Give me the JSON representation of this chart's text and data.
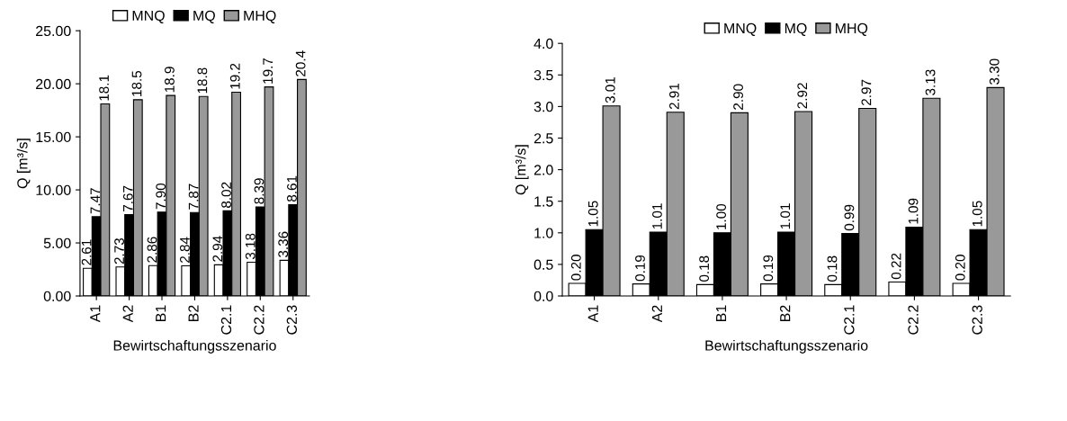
{
  "chart_data": [
    {
      "type": "bar",
      "xlabel": "Bewirtschaftungsszenario",
      "ylabel": "Q [m³/s]",
      "categories": [
        "A1",
        "A2",
        "B1",
        "B2",
        "C2.1",
        "C2.2",
        "C2.3"
      ],
      "series": [
        {
          "name": "MNQ",
          "color": "#ffffff",
          "values": [
            2.61,
            2.73,
            2.86,
            2.84,
            2.94,
            3.18,
            3.36
          ],
          "value_labels": [
            "2.61",
            "2.73",
            "2.86",
            "2.84",
            "2.94",
            "3.18",
            "3.36"
          ]
        },
        {
          "name": "MQ",
          "color": "#000000",
          "values": [
            7.47,
            7.67,
            7.9,
            7.87,
            8.02,
            8.39,
            8.61
          ],
          "value_labels": [
            "7.47",
            "7.67",
            "7.90",
            "7.87",
            "8.02",
            "8.39",
            "8.61"
          ]
        },
        {
          "name": "MHQ",
          "color": "#999999",
          "values": [
            18.1,
            18.5,
            18.9,
            18.8,
            19.2,
            19.7,
            20.4
          ],
          "value_labels": [
            "18.1",
            "18.5",
            "18.9",
            "18.8",
            "19.2",
            "19.7",
            "20.4"
          ]
        }
      ],
      "ylim": [
        0,
        25
      ],
      "yticks": [
        {
          "value": 0,
          "label": "0.00"
        },
        {
          "value": 5,
          "label": "5.00"
        },
        {
          "value": 10,
          "label": "10.00"
        },
        {
          "value": 15,
          "label": "15.00"
        },
        {
          "value": 20,
          "label": "20.00"
        },
        {
          "value": 25,
          "label": "25.00"
        }
      ],
      "legend": "top",
      "grid": false
    },
    {
      "type": "bar",
      "xlabel": "Bewirtschaftungsszenario",
      "ylabel": "Q [m³/s]",
      "categories": [
        "A1",
        "A2",
        "B1",
        "B2",
        "C2.1",
        "C2.2",
        "C2.3"
      ],
      "series": [
        {
          "name": "MNQ",
          "color": "#ffffff",
          "values": [
            0.2,
            0.19,
            0.18,
            0.19,
            0.18,
            0.22,
            0.2
          ],
          "value_labels": [
            "0.20",
            "0.19",
            "0.18",
            "0.19",
            "0.18",
            "0.22",
            "0.20"
          ]
        },
        {
          "name": "MQ",
          "color": "#000000",
          "values": [
            1.05,
            1.01,
            1.0,
            1.01,
            0.99,
            1.09,
            1.05
          ],
          "value_labels": [
            "1.05",
            "1.01",
            "1.00",
            "1.01",
            "0.99",
            "1.09",
            "1.05"
          ]
        },
        {
          "name": "MHQ",
          "color": "#999999",
          "values": [
            3.01,
            2.91,
            2.9,
            2.92,
            2.97,
            3.13,
            3.3
          ],
          "value_labels": [
            "3.01",
            "2.91",
            "2.90",
            "2.92",
            "2.97",
            "3.13",
            "3.30"
          ]
        }
      ],
      "ylim": [
        0,
        4
      ],
      "yticks": [
        {
          "value": 0,
          "label": "0.0"
        },
        {
          "value": 0.5,
          "label": "0.5"
        },
        {
          "value": 1,
          "label": "1.0"
        },
        {
          "value": 1.5,
          "label": "1.5"
        },
        {
          "value": 2,
          "label": "2.0"
        },
        {
          "value": 2.5,
          "label": "2.5"
        },
        {
          "value": 3,
          "label": "3.0"
        },
        {
          "value": 3.5,
          "label": "3.5"
        },
        {
          "value": 4,
          "label": "4.0"
        }
      ],
      "legend": "top",
      "grid": false
    }
  ]
}
